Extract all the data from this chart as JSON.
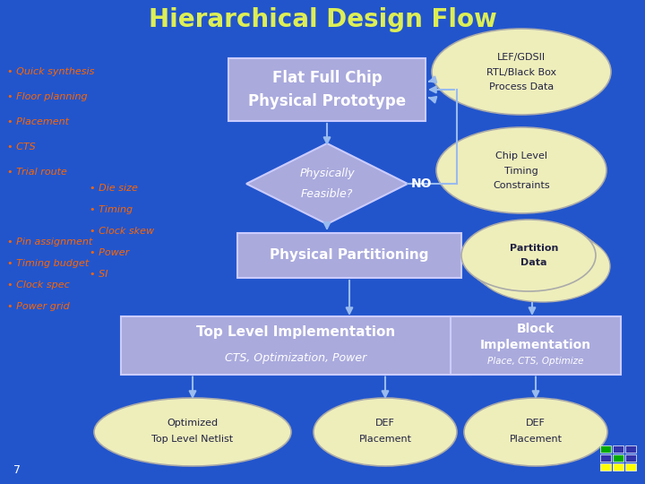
{
  "title": "Hierarchical Design Flow",
  "title_color": "#DDEE55",
  "bg_color": "#2255CC",
  "box_fill": "#AAAADD",
  "box_edge": "#CCCCFF",
  "ellipse_fill": "#EEEEBB",
  "ellipse_edge": "#AAAAAA",
  "arrow_color": "#99BBEE",
  "bullet_color": "#FF6600",
  "white": "#FFFFFF",
  "dark": "#222244",
  "left_bullets_top": [
    "• Quick synthesis",
    "• Floor planning",
    "• Placement",
    "• CTS",
    "• Trial route"
  ],
  "left_bullets_mid": [
    "• Die size",
    "• Timing",
    "• Clock skew",
    "• Power",
    "• SI"
  ],
  "left_bullets_bot": [
    "• Pin assignment",
    "• Timing budget",
    "• Clock spec",
    "• Power grid"
  ]
}
